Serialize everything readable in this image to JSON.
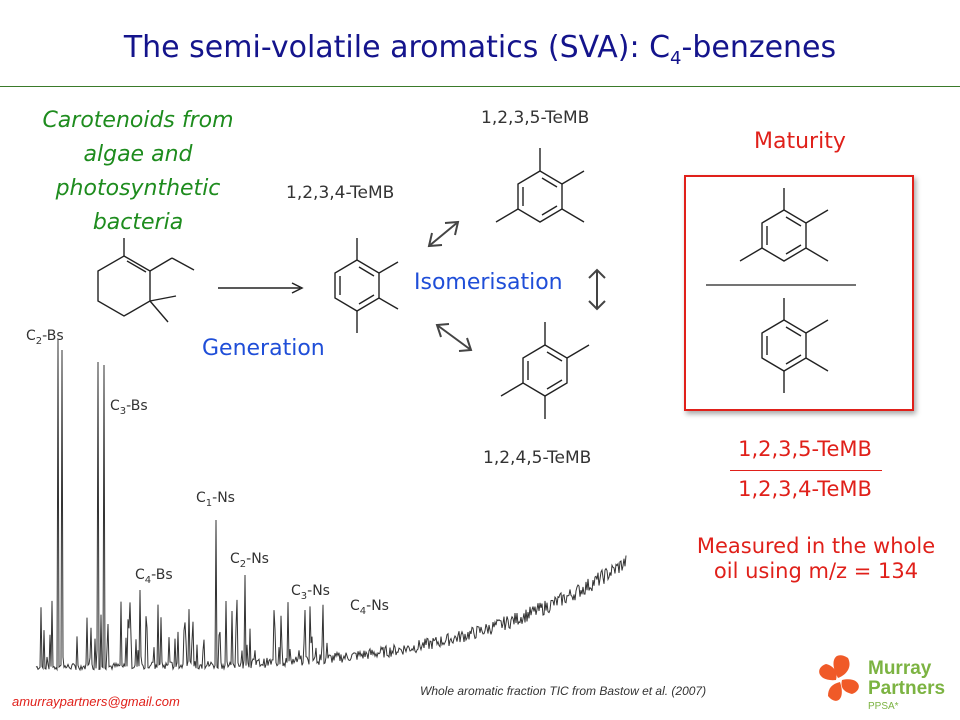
{
  "title": {
    "prefix": "The semi-volatile aromatics (SVA): C",
    "sub": "4",
    "suffix": "-benzenes"
  },
  "source": "Carotenoids from algae and photosynthetic bacteria",
  "labels": {
    "te1234": "1,2,3,4-TeMB",
    "te1235": "1,2,3,5-TeMB",
    "te1245": "1,2,4,5-TeMB",
    "isomerisation": "Isomerisation",
    "generation": "Generation",
    "maturity": "Maturity"
  },
  "ratio": {
    "numerator": "1,2,3,5-TeMB",
    "denominator": "1,2,3,4-TeMB"
  },
  "measured": {
    "line1": "Measured in the whole",
    "line2": "oil using m/z = 134"
  },
  "peaks": [
    {
      "base": "C",
      "sub": "2",
      "suffix": "-Bs"
    },
    {
      "base": "C",
      "sub": "3",
      "suffix": "-Bs"
    },
    {
      "base": "C",
      "sub": "1",
      "suffix": "-Ns"
    },
    {
      "base": "C",
      "sub": "4",
      "suffix": "-Bs"
    },
    {
      "base": "C",
      "sub": "2",
      "suffix": "-Ns"
    },
    {
      "base": "C",
      "sub": "3",
      "suffix": "-Ns"
    },
    {
      "base": "C",
      "sub": "4",
      "suffix": "-Ns"
    }
  ],
  "email": "amurraypartners@gmail.com",
  "citation": "Whole aromatic fraction TIC from Bastow et al. (2007)",
  "logo": {
    "line1": "Murray",
    "line2": "Partners",
    "line3": "PPSA*"
  },
  "colors": {
    "title": "#14148c",
    "green": "#1e8c1e",
    "blue": "#1f4ed8",
    "red": "#e0201a",
    "logo_orange": "#f05a28",
    "logo_green": "#7cb342"
  }
}
